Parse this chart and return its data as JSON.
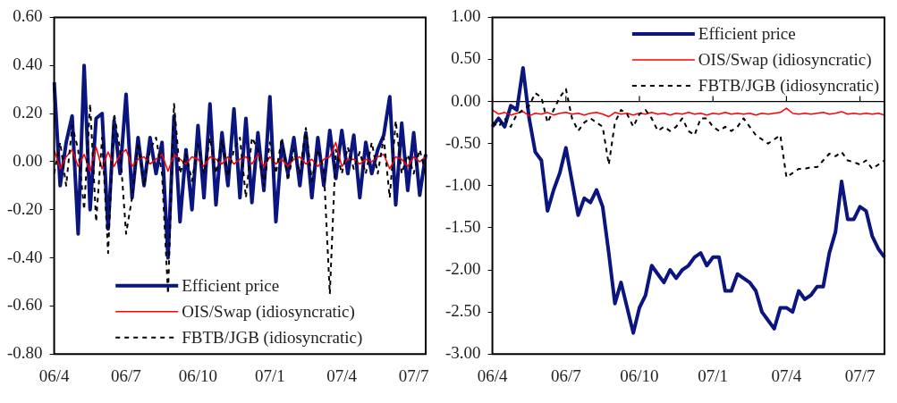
{
  "chart_data": [
    {
      "type": "line",
      "categories": [
        "06/4",
        null,
        null,
        null,
        null,
        null,
        null,
        null,
        null,
        null,
        null,
        null,
        "06/7",
        null,
        null,
        null,
        null,
        null,
        null,
        null,
        null,
        null,
        null,
        null,
        "06/10",
        null,
        null,
        null,
        null,
        null,
        null,
        null,
        null,
        null,
        null,
        null,
        "07/1",
        null,
        null,
        null,
        null,
        null,
        null,
        null,
        null,
        null,
        null,
        null,
        "07/4",
        null,
        null,
        null,
        null,
        null,
        null,
        null,
        null,
        null,
        null,
        null,
        "07/7",
        null,
        null
      ],
      "ylim": [
        -0.8,
        0.6
      ],
      "yticks": [
        {
          "value": -0.8,
          "label": "-0.80"
        },
        {
          "value": -0.6,
          "label": "-0.60"
        },
        {
          "value": -0.4,
          "label": "-0.40"
        },
        {
          "value": -0.2,
          "label": "-0.20"
        },
        {
          "value": 0,
          "label": "0.00"
        },
        {
          "value": 0.2,
          "label": "0.20"
        },
        {
          "value": 0.4,
          "label": "0.40"
        },
        {
          "value": 0.6,
          "label": "0.60"
        }
      ],
      "grid": false,
      "marker": "none",
      "legend": "bottom",
      "tick_labels": true,
      "series": [
        {
          "name": "Efficient price",
          "color": "#0a1580",
          "line_style": "solid",
          "values": [
            0.33,
            -0.1,
            0.08,
            0.19,
            -0.3,
            0.4,
            -0.2,
            0.18,
            0.2,
            -0.28,
            0.17,
            -0.05,
            0.28,
            -0.15,
            0.1,
            -0.1,
            0.1,
            -0.05,
            0.08,
            -0.4,
            0.19,
            -0.25,
            0.05,
            -0.2,
            0.15,
            -0.15,
            0.24,
            -0.18,
            0.12,
            -0.1,
            0.22,
            -0.15,
            0.18,
            -0.17,
            0.12,
            -0.12,
            0.27,
            -0.25,
            0.08,
            -0.05,
            0.1,
            -0.1,
            0.12,
            -0.15,
            0.1,
            -0.1,
            0.13,
            -0.07,
            0.13,
            -0.05,
            0.11,
            -0.15,
            0.08,
            -0.05,
            0.05,
            0.11,
            0.27,
            -0.18,
            0.16,
            -0.12,
            0.12,
            -0.14,
            0.03
          ]
        },
        {
          "name": "OIS/Swap (idiosyncratic)",
          "color": "#ff0000",
          "line_style": "solid",
          "values": [
            0.05,
            -0.03,
            0.02,
            0.05,
            -0.02,
            0.03,
            -0.04,
            0.06,
            -0.03,
            0.04,
            -0.02,
            0.03,
            0.05,
            -0.02,
            0.01,
            0.02,
            -0.01,
            0.01,
            0.03,
            -0.04,
            0.03,
            0.01,
            -0.01,
            0.02,
            0.01,
            -0.02,
            0.02,
            0.01,
            -0.01,
            0.02,
            -0.01,
            0.01,
            0.02,
            -0.01,
            0.03,
            -0.02,
            0.02,
            -0.01,
            0.01,
            -0.02,
            0.01,
            0.02,
            -0.01,
            0.01,
            -0.02,
            0.01,
            0.02,
            0.08,
            -0.02,
            0.01,
            0.01,
            -0.01,
            0.01,
            0.0,
            0.02,
            0.03,
            -0.03,
            0.02,
            0.01,
            -0.02,
            0.02,
            0.0,
            0.02
          ]
        },
        {
          "name": "FBTB/JGB (idiosyncratic)",
          "color": "#000000",
          "line_style": "dashed",
          "values": [
            -0.05,
            0.08,
            -0.1,
            0.15,
            0.05,
            -0.2,
            0.24,
            -0.25,
            0.1,
            -0.38,
            0.2,
            0.05,
            -0.3,
            -0.15,
            0.08,
            -0.1,
            0.05,
            0.1,
            -0.05,
            -0.55,
            0.24,
            -0.05,
            0.03,
            -0.08,
            0.07,
            -0.05,
            0.1,
            -0.05,
            0.09,
            -0.06,
            0.05,
            0.1,
            -0.15,
            0.1,
            0.05,
            -0.1,
            0.08,
            -0.05,
            0.1,
            -0.08,
            0.05,
            -0.05,
            0.14,
            -0.08,
            0.05,
            -0.03,
            -0.55,
            0.05,
            -0.05,
            0.06,
            -0.03,
            0.04,
            -0.05,
            0.08,
            -0.05,
            0.1,
            -0.15,
            0.17,
            -0.05,
            0.03,
            -0.05,
            0.05,
            -0.05
          ]
        }
      ]
    },
    {
      "type": "line",
      "categories": [
        "06/4",
        null,
        null,
        null,
        null,
        null,
        null,
        null,
        null,
        null,
        null,
        null,
        "06/7",
        null,
        null,
        null,
        null,
        null,
        null,
        null,
        null,
        null,
        null,
        null,
        "06/10",
        null,
        null,
        null,
        null,
        null,
        null,
        null,
        null,
        null,
        null,
        null,
        "07/1",
        null,
        null,
        null,
        null,
        null,
        null,
        null,
        null,
        null,
        null,
        null,
        "07/4",
        null,
        null,
        null,
        null,
        null,
        null,
        null,
        null,
        null,
        null,
        null,
        "07/7",
        null,
        null,
        null,
        null
      ],
      "ylim": [
        -3,
        1
      ],
      "yticks": [
        {
          "value": -3,
          "label": "-3.00"
        },
        {
          "value": -2.5,
          "label": "-2.50"
        },
        {
          "value": -2,
          "label": "-2.00"
        },
        {
          "value": -1.5,
          "label": "-1.50"
        },
        {
          "value": -1,
          "label": "-1.00"
        },
        {
          "value": -0.5,
          "label": "-0.50"
        },
        {
          "value": 0,
          "label": "0.00"
        },
        {
          "value": 0.5,
          "label": "0.50"
        },
        {
          "value": 1,
          "label": "1.00"
        }
      ],
      "grid": false,
      "marker": "none",
      "legend": "top right",
      "tick_labels": true,
      "ref_lines": [
        {
          "axis": "y",
          "value": 0,
          "color": "#000000"
        }
      ],
      "series": [
        {
          "name": "Efficient price",
          "color": "#0a1580",
          "line_style": "solid",
          "values": [
            -0.3,
            -0.2,
            -0.3,
            -0.05,
            -0.1,
            0.4,
            -0.2,
            -0.6,
            -0.7,
            -1.3,
            -1.05,
            -0.85,
            -0.55,
            -0.95,
            -1.35,
            -1.15,
            -1.2,
            -1.05,
            -1.25,
            -1.8,
            -2.4,
            -2.15,
            -2.45,
            -2.75,
            -2.45,
            -2.3,
            -1.95,
            -2.05,
            -2.15,
            -2.0,
            -2.1,
            -2.0,
            -1.95,
            -1.85,
            -1.8,
            -1.95,
            -1.85,
            -1.85,
            -2.25,
            -2.25,
            -2.05,
            -2.1,
            -2.15,
            -2.25,
            -2.5,
            -2.6,
            -2.7,
            -2.45,
            -2.45,
            -2.5,
            -2.25,
            -2.35,
            -2.3,
            -2.2,
            -2.2,
            -1.8,
            -1.55,
            -0.95,
            -1.4,
            -1.4,
            -1.25,
            -1.3,
            -1.6,
            -1.75,
            -1.85
          ]
        },
        {
          "name": "OIS/Swap (idiosyncratic)",
          "color": "#ff0000",
          "line_style": "solid",
          "values": [
            -0.1,
            -0.15,
            -0.13,
            -0.16,
            -0.14,
            -0.12,
            -0.17,
            -0.14,
            -0.15,
            -0.13,
            -0.16,
            -0.14,
            -0.13,
            -0.15,
            -0.14,
            -0.16,
            -0.14,
            -0.13,
            -0.15,
            -0.18,
            -0.13,
            -0.15,
            -0.14,
            -0.16,
            -0.14,
            -0.15,
            -0.13,
            -0.15,
            -0.14,
            -0.16,
            -0.14,
            -0.15,
            -0.13,
            -0.15,
            -0.14,
            -0.16,
            -0.14,
            -0.15,
            -0.13,
            -0.15,
            -0.14,
            -0.15,
            -0.14,
            -0.16,
            -0.14,
            -0.15,
            -0.14,
            -0.13,
            -0.08,
            -0.14,
            -0.15,
            -0.14,
            -0.15,
            -0.14,
            -0.13,
            -0.15,
            -0.14,
            -0.12,
            -0.15,
            -0.14,
            -0.15,
            -0.14,
            -0.15,
            -0.14,
            -0.16
          ]
        },
        {
          "name": "FBTB/JGB (idiosyncratic)",
          "color": "#000000",
          "line_style": "dashed",
          "values": [
            -0.25,
            -0.3,
            -0.2,
            -0.3,
            -0.15,
            -0.1,
            -0.05,
            0.1,
            0.05,
            -0.25,
            -0.1,
            0.05,
            0.15,
            -0.2,
            -0.35,
            -0.25,
            -0.2,
            -0.25,
            -0.3,
            -0.75,
            -0.25,
            -0.1,
            -0.15,
            -0.3,
            -0.15,
            -0.1,
            -0.2,
            -0.35,
            -0.3,
            -0.35,
            -0.3,
            -0.2,
            -0.35,
            -0.4,
            -0.2,
            -0.2,
            -0.3,
            -0.35,
            -0.3,
            -0.35,
            -0.3,
            -0.2,
            -0.3,
            -0.4,
            -0.45,
            -0.5,
            -0.45,
            -0.4,
            -0.9,
            -0.85,
            -0.8,
            -0.8,
            -0.78,
            -0.78,
            -0.7,
            -0.62,
            -0.65,
            -0.6,
            -0.7,
            -0.72,
            -0.75,
            -0.7,
            -0.8,
            -0.75,
            -0.7
          ]
        }
      ]
    }
  ]
}
